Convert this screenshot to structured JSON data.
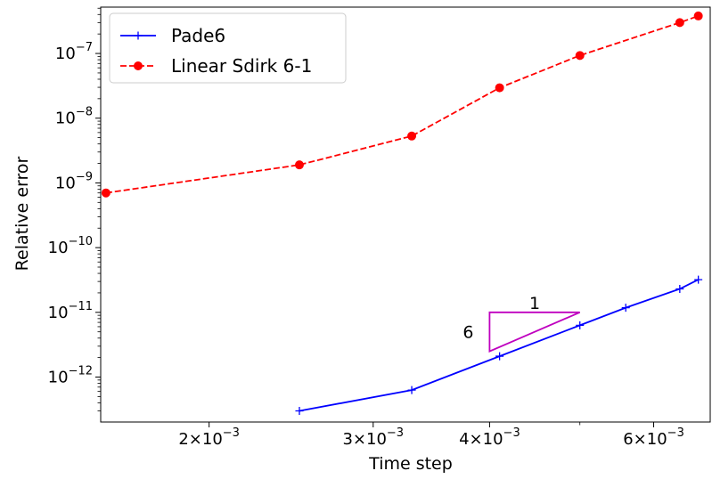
{
  "chart_data": {
    "type": "line",
    "xlabel": "Time step",
    "ylabel": "Relative error",
    "xscale": "log",
    "yscale": "log",
    "xlim": [
      0.00153,
      0.0069
    ],
    "ylim": [
      2.02e-13,
      5.2e-07
    ],
    "x_ticks": [
      {
        "value": 0.002,
        "mantissa": "2",
        "times": "×",
        "base": "10",
        "exp": "−3"
      },
      {
        "value": 0.003,
        "mantissa": "3",
        "times": "×",
        "base": "10",
        "exp": "−3"
      },
      {
        "value": 0.004,
        "mantissa": "4",
        "times": "×",
        "base": "10",
        "exp": "−3"
      },
      {
        "value": 0.006,
        "mantissa": "6",
        "times": "×",
        "base": "10",
        "exp": "−3"
      }
    ],
    "y_ticks": [
      {
        "value": 1e-12,
        "base": "10",
        "exp": "−12"
      },
      {
        "value": 1e-11,
        "base": "10",
        "exp": "−11"
      },
      {
        "value": 1e-10,
        "base": "10",
        "exp": "−10"
      },
      {
        "value": 1e-09,
        "base": "10",
        "exp": "−9"
      },
      {
        "value": 1e-08,
        "base": "10",
        "exp": "−8"
      },
      {
        "value": 1e-07,
        "base": "10",
        "exp": "−7"
      }
    ],
    "legend_position": "upper-left",
    "series": [
      {
        "name": "Pade6",
        "color": "#0000ff",
        "line_style": "solid",
        "marker": "plus",
        "x": [
          0.0025,
          0.0033,
          0.0041,
          0.005,
          0.0056,
          0.0064,
          0.0067
        ],
        "y": [
          3e-13,
          6.3e-13,
          2.1e-12,
          6.3e-12,
          1.18e-11,
          2.3e-11,
          3.2e-11
        ]
      },
      {
        "name": "Linear Sdirk 6-1",
        "color": "#ff0000",
        "line_style": "dashed",
        "marker": "circle",
        "x": [
          0.00155,
          0.0025,
          0.0033,
          0.0041,
          0.005,
          0.0064,
          0.0067
        ],
        "y": [
          7e-10,
          1.9e-09,
          5.3e-09,
          2.95e-08,
          9.3e-08,
          3e-07,
          3.8e-07
        ]
      }
    ],
    "annotation": {
      "type": "slope-triangle",
      "color": "#bf00bf",
      "vertices": [
        [
          0.004,
          1e-11
        ],
        [
          0.005,
          1e-11
        ],
        [
          0.004,
          2.5e-12
        ]
      ],
      "run_label": "1",
      "rise_label": "6"
    }
  }
}
